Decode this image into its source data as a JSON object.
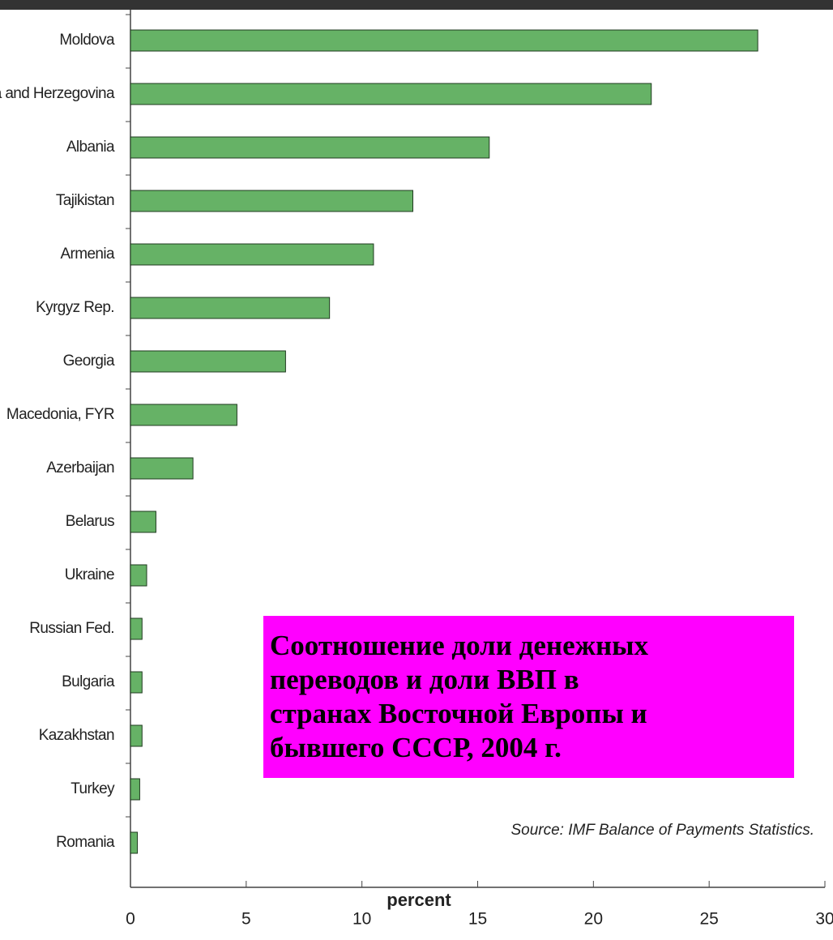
{
  "chart_data": {
    "type": "hbar",
    "title_lines": [
      "Соотношение доли денежных",
      "переводов и доли ВВП в",
      "странах Восточной Европы и",
      "бывшего СССР, 2004 г."
    ],
    "x_label": "percent",
    "source": "Source: IMF Balance of Payments Statistics.",
    "categories": [
      "Moldova",
      "Bosnia and Herzegovina",
      "Albania",
      "Tajikistan",
      "Armenia",
      "Kyrgyz Rep.",
      "Georgia",
      "Macedonia, FYR",
      "Azerbaijan",
      "Belarus",
      "Ukraine",
      "Russian Fed.",
      "Bulgaria",
      "Kazakhstan",
      "Turkey",
      "Romania"
    ],
    "values": [
      27.1,
      22.5,
      15.5,
      12.2,
      10.5,
      8.6,
      6.7,
      4.6,
      2.7,
      1.1,
      0.7,
      0.5,
      0.5,
      0.5,
      0.4,
      0.3
    ],
    "color": "#66b266",
    "xlim": [
      0,
      30
    ],
    "xticks": [
      0,
      5,
      10,
      15,
      20,
      25,
      30
    ]
  }
}
